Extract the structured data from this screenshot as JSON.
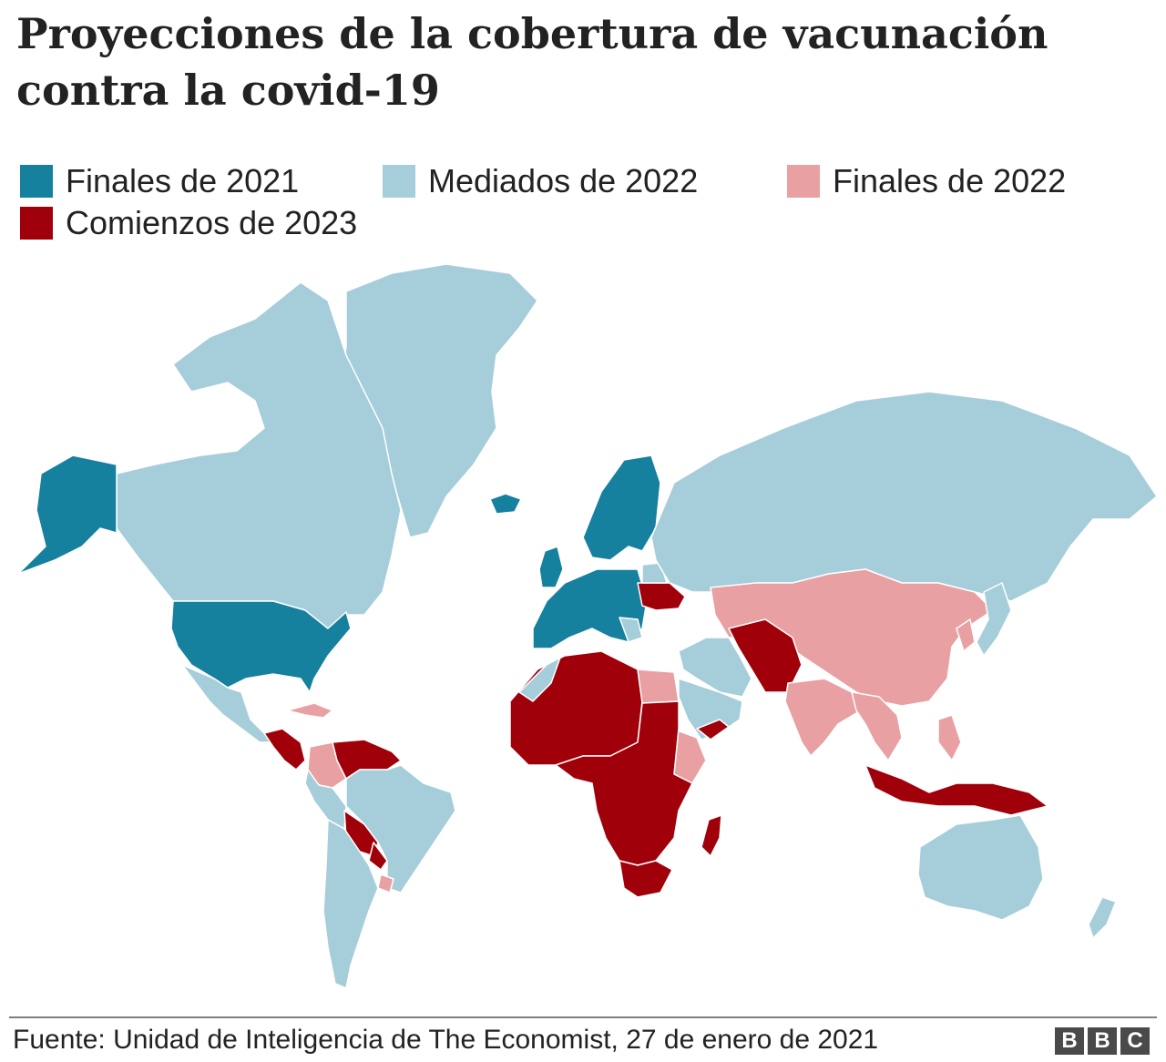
{
  "title": "Proyecciones de la cobertura de vacunación contra la covid-19",
  "legend": [
    {
      "label": "Finales de 2021",
      "color": "#16809f"
    },
    {
      "label": "Mediados de 2022",
      "color": "#a6cdda"
    },
    {
      "label": "Finales de 2022",
      "color": "#e8a0a3"
    },
    {
      "label": "Comienzos de 2023",
      "color": "#a0000a"
    }
  ],
  "map_colors": {
    "ocean": "#ffffff",
    "border": "#ffffff"
  },
  "regions": [
    {
      "name": "Alaska",
      "category": 0
    },
    {
      "name": "Canadá",
      "category": 1
    },
    {
      "name": "Groenlandia",
      "category": 1
    },
    {
      "name": "Estados Unidos",
      "category": 0
    },
    {
      "name": "México",
      "category": 1
    },
    {
      "name": "Caribe",
      "category": 2
    },
    {
      "name": "Centroamérica",
      "category": 3
    },
    {
      "name": "Colombia",
      "category": 2
    },
    {
      "name": "Venezuela",
      "category": 3
    },
    {
      "name": "Brasil",
      "category": 1
    },
    {
      "name": "Bolivia",
      "category": 3
    },
    {
      "name": "Paraguay",
      "category": 3
    },
    {
      "name": "Uruguay",
      "category": 2
    },
    {
      "name": "Argentina y Chile",
      "category": 1
    },
    {
      "name": "Islandia",
      "category": 0
    },
    {
      "name": "Europa occidental",
      "category": 0
    },
    {
      "name": "Escandinavia",
      "category": 0
    },
    {
      "name": "Ucrania",
      "category": 3
    },
    {
      "name": "Rusia",
      "category": 1
    },
    {
      "name": "Asia central y China",
      "category": 2
    },
    {
      "name": "Afganistán y Pakistán",
      "category": 3
    },
    {
      "name": "India",
      "category": 2
    },
    {
      "name": "Japón",
      "category": 1
    },
    {
      "name": "Sudeste asiático",
      "category": 3
    },
    {
      "name": "Indonesia",
      "category": 3
    },
    {
      "name": "Australia",
      "category": 1
    },
    {
      "name": "Nueva Zelanda",
      "category": 1
    },
    {
      "name": "Norte de África",
      "category": 3
    },
    {
      "name": "Egipto",
      "category": 2
    },
    {
      "name": "Península arábiga",
      "category": 1
    },
    {
      "name": "Yemen",
      "category": 3
    },
    {
      "name": "África subsahariana",
      "category": 3
    },
    {
      "name": "Etiopía",
      "category": 2
    },
    {
      "name": "Sudáfrica",
      "category": 1
    },
    {
      "name": "Madagascar",
      "category": 3
    }
  ],
  "source": "Fuente: Unidad de Inteligencia de The Economist, 27 de enero de 2021",
  "logo": [
    "B",
    "B",
    "C"
  ]
}
